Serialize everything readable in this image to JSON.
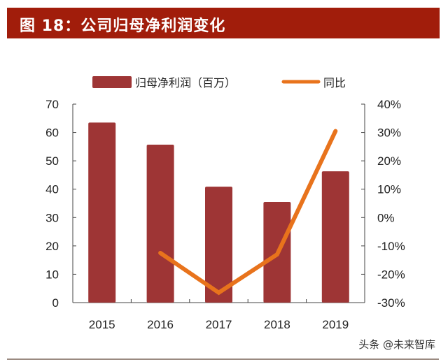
{
  "title": "图 18：公司归母净利润变化",
  "watermark": "头条 @未来智库",
  "colors": {
    "title_bar": "#A11D0B",
    "bar": "#9E3535",
    "line": "#E8731C"
  },
  "chart_data": {
    "type": "bar+line",
    "categories": [
      "2015",
      "2016",
      "2017",
      "2018",
      "2019"
    ],
    "series": [
      {
        "name": "归母净利润（百万）",
        "type": "bar",
        "axis": "left",
        "values": [
          63.5,
          55.7,
          40.9,
          35.5,
          46.3
        ]
      },
      {
        "name": "同比",
        "type": "line",
        "axis": "right",
        "values": [
          null,
          -12.5,
          -26.5,
          -13.0,
          30.5
        ]
      }
    ],
    "left_axis": {
      "ylim": [
        0,
        70
      ],
      "ticks": [
        "0",
        "10",
        "20",
        "30",
        "40",
        "50",
        "60",
        "70"
      ]
    },
    "right_axis": {
      "ylim": [
        -30,
        40
      ],
      "unit": "%",
      "ticks": [
        "-30%",
        "-20%",
        "-10%",
        "0%",
        "10%",
        "20%",
        "30%",
        "40%"
      ]
    },
    "legend": "top",
    "grid": false
  }
}
